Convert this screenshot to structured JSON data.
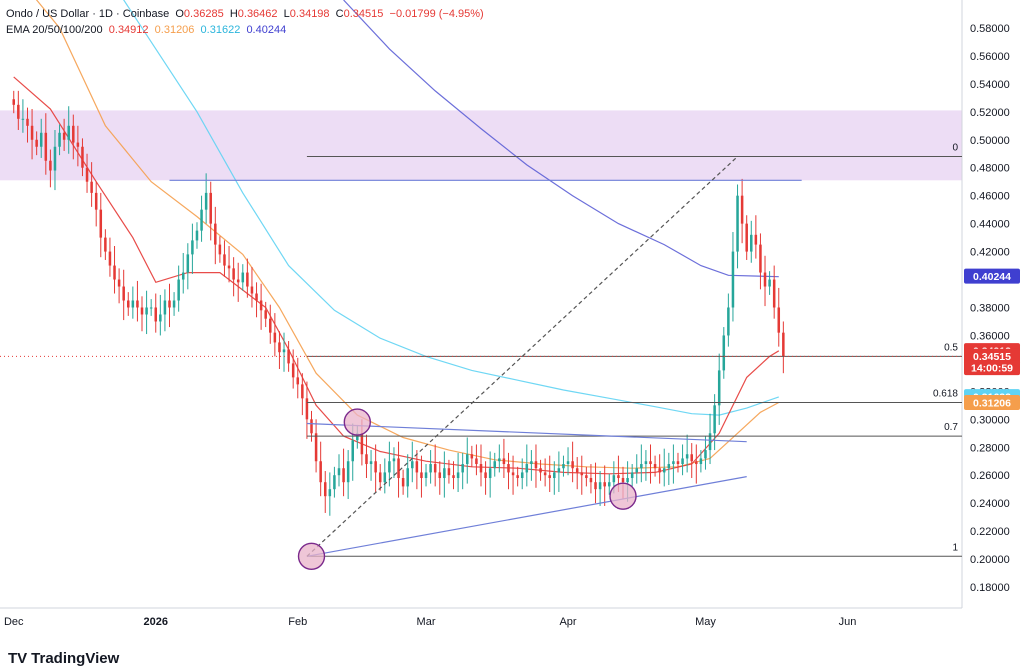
{
  "header": {
    "symbol": "Ondo / US Dollar · 1D · Coinbase",
    "o_label": "O",
    "o": "0.36285",
    "h_label": "H",
    "h": "0.36462",
    "l_label": "L",
    "l": "0.34198",
    "c_label": "C",
    "c": "0.34515",
    "change": "−0.01799 (−4.95%)",
    "ema_label": "EMA 20/50/100/200",
    "ema20": "0.34912",
    "ema50": "0.31206",
    "ema100": "0.31622",
    "ema200": "0.40244"
  },
  "footer": {
    "brand": "TradingView",
    "logo": "TV"
  },
  "colors": {
    "up": "#26a69a",
    "down": "#e53935",
    "candle_body": "#e0393e",
    "ema20": "#e53935",
    "ema50": "#f59e4c",
    "ema100": "#5fd3f3",
    "ema200": "#5c5fd6",
    "zone": "#e8d5f2",
    "fib": "#555555",
    "trend": "#6f7fd8"
  },
  "price_tags": [
    {
      "label": "0.40244",
      "value": 0.40244,
      "color": "#3f3fd0"
    },
    {
      "label": "0.34912",
      "value": 0.34912,
      "color": "#e53935"
    },
    {
      "label": "0.34515",
      "value": 0.34515,
      "color": "#e53935"
    },
    {
      "label": "14:00:59",
      "value": 0.337,
      "color": "#e53935"
    },
    {
      "label": "0.31622",
      "value": 0.31622,
      "color": "#5fd3f3"
    },
    {
      "label": "0.31206",
      "value": 0.31206,
      "color": "#f59e4c"
    }
  ],
  "chart_data": {
    "type": "candlestick",
    "x_axis": {
      "ticks": [
        {
          "label": "Dec",
          "day": 0
        },
        {
          "label": "2026",
          "day": 31
        },
        {
          "label": "Feb",
          "day": 62
        },
        {
          "label": "Mar",
          "day": 90
        },
        {
          "label": "Apr",
          "day": 121
        },
        {
          "label": "May",
          "day": 151
        },
        {
          "label": "Jun",
          "day": 182
        }
      ],
      "range_days": [
        -3,
        207
      ]
    },
    "y_axis": {
      "ticks": [
        "0.18000",
        "0.20000",
        "0.22000",
        "0.24000",
        "0.26000",
        "0.28000",
        "0.30000",
        "0.32000",
        "0.34000",
        "0.36000",
        "0.38000",
        "0.40000",
        "0.42000",
        "0.44000",
        "0.46000",
        "0.48000",
        "0.50000",
        "0.52000",
        "0.54000",
        "0.56000",
        "0.58000",
        "0.60000"
      ],
      "range": [
        0.165,
        0.6
      ]
    },
    "resistance_zone": [
      0.471,
      0.521
    ],
    "fib_levels": [
      {
        "label": "0",
        "value": 0.488
      },
      {
        "label": "0.5",
        "value": 0.345
      },
      {
        "label": "0.618",
        "value": 0.312
      },
      {
        "label": "0.7",
        "value": 0.288
      },
      {
        "label": "1",
        "value": 0.202
      }
    ],
    "trendlines": [
      {
        "name": "upper",
        "from": [
          64,
          0.297
        ],
        "to": [
          160,
          0.284
        ]
      },
      {
        "name": "lower",
        "from": [
          64,
          0.202
        ],
        "to": [
          160,
          0.259
        ]
      },
      {
        "name": "zone-top",
        "from": [
          34,
          0.471
        ],
        "to": [
          172,
          0.471
        ]
      },
      {
        "name": "diagonal",
        "from": [
          64,
          0.202
        ],
        "to": [
          158,
          0.488
        ]
      }
    ],
    "circles": [
      {
        "day": 65,
        "value": 0.202
      },
      {
        "day": 75,
        "value": 0.298
      },
      {
        "day": 133,
        "value": 0.245
      }
    ],
    "closes": [
      0.525,
      0.515,
      0.515,
      0.51,
      0.5,
      0.495,
      0.505,
      0.485,
      0.478,
      0.495,
      0.505,
      0.5,
      0.51,
      0.498,
      0.495,
      0.48,
      0.47,
      0.462,
      0.45,
      0.43,
      0.42,
      0.41,
      0.4,
      0.395,
      0.385,
      0.38,
      0.385,
      0.38,
      0.375,
      0.38,
      0.38,
      0.37,
      0.375,
      0.385,
      0.38,
      0.385,
      0.4,
      0.405,
      0.418,
      0.428,
      0.435,
      0.45,
      0.462,
      0.44,
      0.425,
      0.418,
      0.41,
      0.408,
      0.4,
      0.398,
      0.405,
      0.395,
      0.39,
      0.385,
      0.378,
      0.372,
      0.362,
      0.355,
      0.348,
      0.35,
      0.34,
      0.33,
      0.325,
      0.315,
      0.3,
      0.29,
      0.27,
      0.255,
      0.245,
      0.25,
      0.26,
      0.265,
      0.255,
      0.27,
      0.285,
      0.29,
      0.275,
      0.268,
      0.27,
      0.262,
      0.255,
      0.262,
      0.27,
      0.272,
      0.258,
      0.252,
      0.265,
      0.27,
      0.262,
      0.258,
      0.262,
      0.268,
      0.262,
      0.258,
      0.265,
      0.26,
      0.258,
      0.262,
      0.268,
      0.275,
      0.272,
      0.268,
      0.262,
      0.258,
      0.265,
      0.27,
      0.272,
      0.268,
      0.262,
      0.26,
      0.258,
      0.262,
      0.268,
      0.27,
      0.265,
      0.262,
      0.26,
      0.258,
      0.262,
      0.265,
      0.268,
      0.27,
      0.265,
      0.262,
      0.26,
      0.258,
      0.255,
      0.25,
      0.255,
      0.252,
      0.255,
      0.26,
      0.258,
      0.255,
      0.258,
      0.262,
      0.265,
      0.268,
      0.27,
      0.268,
      0.265,
      0.262,
      0.265,
      0.268,
      0.27,
      0.268,
      0.272,
      0.275,
      0.27,
      0.268,
      0.272,
      0.278,
      0.29,
      0.31,
      0.335,
      0.36,
      0.38,
      0.42,
      0.46,
      0.44,
      0.42,
      0.432,
      0.425,
      0.405,
      0.395,
      0.4,
      0.38,
      0.362,
      0.345
    ],
    "ema20": [
      [
        0,
        0.545
      ],
      [
        8,
        0.522
      ],
      [
        18,
        0.47
      ],
      [
        26,
        0.43
      ],
      [
        31,
        0.398
      ],
      [
        38,
        0.405
      ],
      [
        45,
        0.405
      ],
      [
        55,
        0.38
      ],
      [
        60,
        0.35
      ],
      [
        66,
        0.31
      ],
      [
        72,
        0.288
      ],
      [
        80,
        0.277
      ],
      [
        90,
        0.27
      ],
      [
        100,
        0.266
      ],
      [
        110,
        0.265
      ],
      [
        120,
        0.262
      ],
      [
        130,
        0.261
      ],
      [
        140,
        0.262
      ],
      [
        148,
        0.268
      ],
      [
        154,
        0.29
      ],
      [
        160,
        0.33
      ],
      [
        165,
        0.345
      ],
      [
        167,
        0.349
      ]
    ],
    "ema50": [
      [
        0,
        0.62
      ],
      [
        10,
        0.58
      ],
      [
        20,
        0.51
      ],
      [
        30,
        0.47
      ],
      [
        40,
        0.445
      ],
      [
        50,
        0.418
      ],
      [
        58,
        0.38
      ],
      [
        66,
        0.333
      ],
      [
        75,
        0.303
      ],
      [
        85,
        0.287
      ],
      [
        95,
        0.278
      ],
      [
        105,
        0.271
      ],
      [
        115,
        0.268
      ],
      [
        125,
        0.266
      ],
      [
        135,
        0.265
      ],
      [
        145,
        0.266
      ],
      [
        152,
        0.272
      ],
      [
        158,
        0.29
      ],
      [
        163,
        0.305
      ],
      [
        167,
        0.312
      ]
    ],
    "ema100": [
      [
        20,
        0.62
      ],
      [
        30,
        0.57
      ],
      [
        40,
        0.52
      ],
      [
        50,
        0.462
      ],
      [
        60,
        0.41
      ],
      [
        70,
        0.378
      ],
      [
        80,
        0.358
      ],
      [
        90,
        0.345
      ],
      [
        100,
        0.335
      ],
      [
        110,
        0.328
      ],
      [
        120,
        0.321
      ],
      [
        130,
        0.315
      ],
      [
        140,
        0.309
      ],
      [
        148,
        0.304
      ],
      [
        154,
        0.303
      ],
      [
        160,
        0.308
      ],
      [
        167,
        0.316
      ]
    ],
    "ema200": [
      [
        72,
        0.6
      ],
      [
        82,
        0.565
      ],
      [
        92,
        0.535
      ],
      [
        102,
        0.508
      ],
      [
        112,
        0.482
      ],
      [
        122,
        0.46
      ],
      [
        132,
        0.44
      ],
      [
        142,
        0.425
      ],
      [
        150,
        0.41
      ],
      [
        156,
        0.403
      ],
      [
        167,
        0.402
      ]
    ]
  }
}
